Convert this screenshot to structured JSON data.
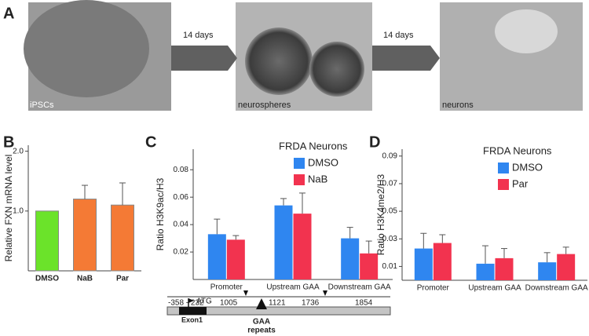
{
  "panel_labels": [
    "A",
    "B",
    "C",
    "D"
  ],
  "panel_a": {
    "images": [
      "iPSCs",
      "neurospheres",
      "neurons"
    ],
    "arrows": [
      "14 days",
      "14 days"
    ]
  },
  "diagram": {
    "positions": [
      "-358 - 232",
      "1005",
      "1121",
      "1736",
      "1854"
    ],
    "atg": "ATG",
    "exon": "Exon1",
    "repeats": [
      "GAA",
      "repeats"
    ]
  },
  "chart_data": [
    {
      "type": "bar",
      "ylabel": "Relative FXN mRNA level",
      "categories": [
        "DMSO",
        "NaB",
        "Par"
      ],
      "values": [
        1.0,
        1.2,
        1.1
      ],
      "errors": [
        0,
        0.23,
        0.37
      ],
      "colors": [
        "#6be32a",
        "#f47a35",
        "#f47a35"
      ],
      "ylim": [
        0,
        2.1
      ],
      "yticks": [
        {
          "value": 1,
          "label": "1.0"
        },
        {
          "value": 2,
          "label": "2.0"
        }
      ]
    },
    {
      "type": "bar",
      "ylabel": "Ratio H3K9ac/H3",
      "legend_title": "FRDA Neurons",
      "categories": [
        "Promoter",
        "Upstream GAA",
        "Downstream GAA"
      ],
      "series": [
        {
          "name": "DMSO",
          "color": "#2f86f0",
          "values": [
            0.033,
            0.054,
            0.03
          ],
          "errors": [
            0.011,
            0.005,
            0.008
          ]
        },
        {
          "name": "NaB",
          "color": "#f2334f",
          "values": [
            0.029,
            0.048,
            0.019
          ],
          "errors": [
            0.003,
            0.015,
            0.009
          ]
        }
      ],
      "ylim": [
        0,
        0.095
      ],
      "yticks": [
        0.02,
        0.04,
        0.06,
        0.08
      ]
    },
    {
      "type": "bar",
      "ylabel": "Ratio H3K4me2/H3",
      "legend_title": "FRDA Neurons",
      "categories": [
        "Promoter",
        "Upstream GAA",
        "Downstream GAA"
      ],
      "series": [
        {
          "name": "DMSO",
          "color": "#2f86f0",
          "values": [
            0.023,
            0.012,
            0.013
          ],
          "errors": [
            0.011,
            0.013,
            0.007
          ]
        },
        {
          "name": "Par",
          "color": "#f2334f",
          "values": [
            0.027,
            0.016,
            0.019
          ],
          "errors": [
            0.006,
            0.007,
            0.005
          ]
        }
      ],
      "ylim": [
        0,
        0.095
      ],
      "yticks": [
        0.01,
        0.03,
        0.05,
        0.07,
        0.09
      ]
    }
  ]
}
